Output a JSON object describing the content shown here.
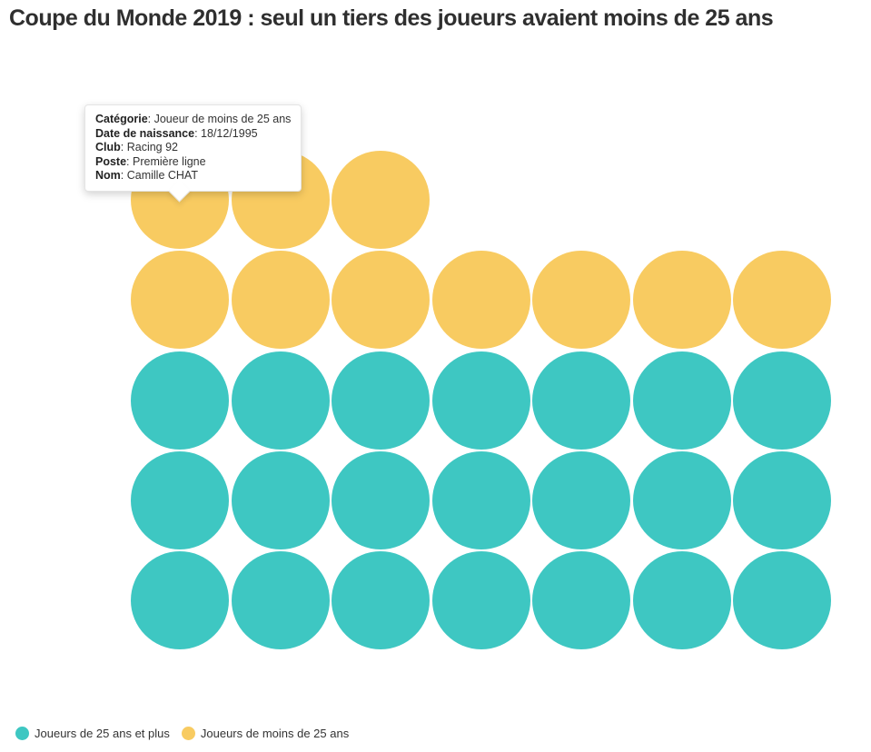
{
  "title": "Coupe du Monde 2019 : seul un tiers des joueurs avaient moins de 25 ans",
  "chart_data": {
    "type": "unit",
    "title": "Coupe du Monde 2019 : seul un tiers des joueurs avaient moins de 25 ans",
    "total_units": 31,
    "series": [
      {
        "name": "Joueurs de moins de 25 ans",
        "key": "under25",
        "value": 10,
        "color": "#F8CB61"
      },
      {
        "name": "Joueurs de 25 ans et plus",
        "key": "plus25",
        "value": 21,
        "color": "#3EC7C2"
      }
    ],
    "colors": {
      "under25": "#F8CB61",
      "plus25": "#3EC7C2"
    },
    "grid": {
      "columns": 7,
      "rows": [
        [
          "under25",
          "under25",
          "under25",
          null,
          null,
          null,
          null
        ],
        [
          "under25",
          "under25",
          "under25",
          "under25",
          "under25",
          "under25",
          "under25"
        ],
        [
          "plus25",
          "plus25",
          "plus25",
          "plus25",
          "plus25",
          "plus25",
          "plus25"
        ],
        [
          "plus25",
          "plus25",
          "plus25",
          "plus25",
          "plus25",
          "plus25",
          "plus25"
        ],
        [
          "plus25",
          "plus25",
          "plus25",
          "plus25",
          "plus25",
          "plus25",
          "plus25"
        ]
      ]
    },
    "layout": {
      "grid_left": 144,
      "grid_top": 166,
      "cell_width": 110.5,
      "cell_height": 110.3,
      "dot_size": 108
    },
    "legend_position": "bottom-left",
    "grid_lines": "off"
  },
  "tooltip": {
    "fields": [
      {
        "label": "Catégorie",
        "value": "Joueur de moins de 25 ans"
      },
      {
        "label": "Date de naissance",
        "value": "18/12/1995"
      },
      {
        "label": "Club",
        "value": "Racing 92"
      },
      {
        "label": "Poste",
        "value": "Première ligne"
      },
      {
        "label": "Nom",
        "value": "Camille CHAT"
      }
    ]
  },
  "legend": {
    "items": [
      {
        "label": "Joueurs de 25 ans et plus",
        "color": "#3EC7C2"
      },
      {
        "label": "Joueurs de moins de 25 ans",
        "color": "#F8CB61"
      }
    ]
  }
}
